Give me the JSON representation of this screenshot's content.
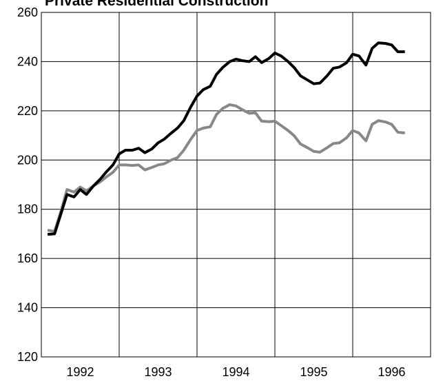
{
  "chart_data": {
    "type": "line",
    "title": "Private Residential Construction",
    "x": [
      1992.08,
      1992.17,
      1992.25,
      1992.33,
      1992.42,
      1992.5,
      1992.58,
      1992.67,
      1992.75,
      1992.83,
      1992.92,
      1993,
      1993.08,
      1993.17,
      1993.25,
      1993.33,
      1993.42,
      1993.5,
      1993.58,
      1993.67,
      1993.75,
      1993.83,
      1993.92,
      1994,
      1994.08,
      1994.17,
      1994.25,
      1994.33,
      1994.42,
      1994.5,
      1994.58,
      1994.67,
      1994.75,
      1994.83,
      1994.92,
      1995,
      1995.08,
      1995.17,
      1995.25,
      1995.33,
      1995.42,
      1995.5,
      1995.58,
      1995.67,
      1995.75,
      1995.83,
      1995.92,
      1996,
      1996.08,
      1996.17,
      1996.25,
      1996.33,
      1996.42,
      1996.5,
      1996.58,
      1996.67
    ],
    "series": [
      {
        "color": "#000000",
        "values": [
          169.8,
          170,
          178,
          186,
          185,
          188,
          186,
          189.5,
          192,
          195,
          198,
          202.5,
          204,
          204,
          204.8,
          203,
          204.5,
          207,
          208.5,
          211,
          213,
          216,
          221.6,
          226,
          228.6,
          230,
          234.8,
          237.6,
          240,
          241,
          240.4,
          240,
          242,
          239.6,
          241.2,
          243.5,
          242.3,
          240,
          237.5,
          234.2,
          232.5,
          231,
          231.3,
          234.2,
          237.3,
          237.8,
          239.5,
          243,
          242.3,
          238.6,
          245.4,
          247.6,
          247.4,
          246.8,
          244,
          244
        ]
      },
      {
        "color": "#888888",
        "values": [
          171.5,
          171,
          179,
          188,
          187,
          189,
          187.5,
          189.5,
          191,
          193,
          195,
          198,
          198,
          197.8,
          198,
          196,
          197,
          198,
          198.5,
          200,
          201,
          204,
          208.5,
          212,
          213,
          213.5,
          218.5,
          221,
          222.5,
          222,
          220.5,
          219,
          219.2,
          215.8,
          215.6,
          215.8,
          214,
          212,
          209.8,
          206.5,
          205,
          203.5,
          203.2,
          205,
          206.7,
          207,
          209,
          212,
          211,
          207.8,
          214.5,
          216,
          215.5,
          214.5,
          211.3,
          211
        ]
      }
    ],
    "xlim": [
      1992,
      1997
    ],
    "xticks": [
      {
        "value": 1992.5,
        "label": "1992"
      },
      {
        "value": 1993.5,
        "label": "1993"
      },
      {
        "value": 1994.5,
        "label": "1994"
      },
      {
        "value": 1995.5,
        "label": "1995"
      },
      {
        "value": 1996.5,
        "label": "1996"
      }
    ],
    "xgrid_lines": [
      1993,
      1994,
      1995,
      1996
    ],
    "ylim": [
      120,
      260
    ],
    "yticks": [
      120,
      140,
      160,
      180,
      200,
      220,
      240,
      260
    ],
    "grid": true
  }
}
